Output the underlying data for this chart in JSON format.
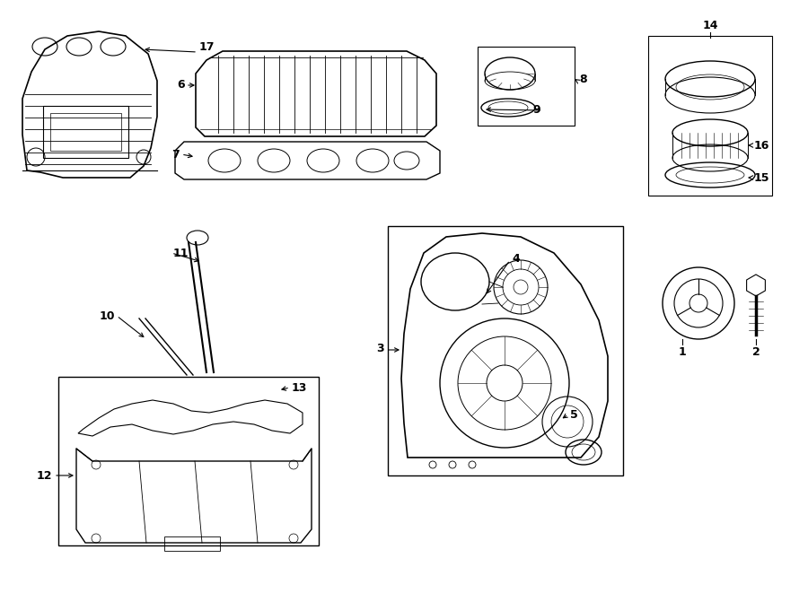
{
  "bg_color": "#ffffff",
  "line_color": "#000000",
  "fig_width": 9.0,
  "fig_height": 6.61,
  "dpi": 100,
  "title_fontsize": 9,
  "label_fontsize": 9
}
